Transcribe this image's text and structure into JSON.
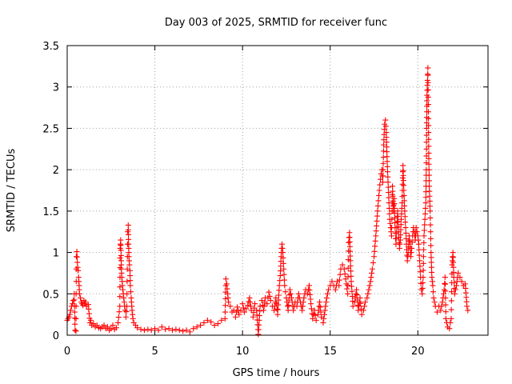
{
  "chart_data": {
    "type": "scatter",
    "title": "Day 003 of 2025, SRMTID for receiver func",
    "xlabel": "GPS time / hours",
    "ylabel": "SRMTID / TECUs",
    "xlim": [
      0,
      24
    ],
    "ylim": [
      0,
      3.5
    ],
    "xticks": [
      0,
      5,
      10,
      15,
      20
    ],
    "xtick_labels": [
      "0",
      "5",
      "10",
      "15",
      "20"
    ],
    "yticks": [
      0,
      0.5,
      1,
      1.5,
      2,
      2.5,
      3,
      3.5
    ],
    "ytick_labels": [
      "0",
      "0.5",
      "1",
      "1.5",
      "2",
      "2.5",
      "3",
      "3.5"
    ],
    "grid": true,
    "marker": "plus",
    "color": "#ff0000",
    "series": [
      {
        "name": "SRMTID",
        "points": [
          [
            0.0,
            0.18
          ],
          [
            0.05,
            0.2
          ],
          [
            0.1,
            0.22
          ],
          [
            0.15,
            0.25
          ],
          [
            0.2,
            0.3
          ],
          [
            0.25,
            0.35
          ],
          [
            0.3,
            0.38
          ],
          [
            0.35,
            0.42
          ],
          [
            0.4,
            0.5
          ],
          [
            0.45,
            0.06
          ],
          [
            0.5,
            0.05
          ],
          [
            0.52,
            0.95
          ],
          [
            0.55,
            1.01
          ],
          [
            0.58,
            0.88
          ],
          [
            0.6,
            0.82
          ],
          [
            0.62,
            0.78
          ],
          [
            0.65,
            0.7
          ],
          [
            0.68,
            0.6
          ],
          [
            0.7,
            0.5
          ],
          [
            0.75,
            0.45
          ],
          [
            0.8,
            0.4
          ],
          [
            0.85,
            0.38
          ],
          [
            0.9,
            0.36
          ],
          [
            0.95,
            0.42
          ],
          [
            1.0,
            0.38
          ],
          [
            1.05,
            0.4
          ],
          [
            1.1,
            0.35
          ],
          [
            1.2,
            0.37
          ],
          [
            1.3,
            0.15
          ],
          [
            1.35,
            0.18
          ],
          [
            1.4,
            0.12
          ],
          [
            1.5,
            0.14
          ],
          [
            1.6,
            0.1
          ],
          [
            1.7,
            0.12
          ],
          [
            1.8,
            0.09
          ],
          [
            1.9,
            0.08
          ],
          [
            2.0,
            0.1
          ],
          [
            2.1,
            0.12
          ],
          [
            2.2,
            0.08
          ],
          [
            2.3,
            0.1
          ],
          [
            2.4,
            0.06
          ],
          [
            2.5,
            0.08
          ],
          [
            2.6,
            0.12
          ],
          [
            2.7,
            0.07
          ],
          [
            2.8,
            0.09
          ],
          [
            2.9,
            0.15
          ],
          [
            3.0,
            0.35
          ],
          [
            3.02,
            1.05
          ],
          [
            3.05,
            1.15
          ],
          [
            3.08,
            0.9
          ],
          [
            3.1,
            0.75
          ],
          [
            3.15,
            0.6
          ],
          [
            3.2,
            0.5
          ],
          [
            3.25,
            0.4
          ],
          [
            3.3,
            0.3
          ],
          [
            3.35,
            0.22
          ],
          [
            3.4,
            0.35
          ],
          [
            3.45,
            1.25
          ],
          [
            3.48,
            1.33
          ],
          [
            3.5,
            1.1
          ],
          [
            3.52,
            0.95
          ],
          [
            3.55,
            0.85
          ],
          [
            3.58,
            0.78
          ],
          [
            3.6,
            0.6
          ],
          [
            3.65,
            0.45
          ],
          [
            3.7,
            0.3
          ],
          [
            3.75,
            0.2
          ],
          [
            3.8,
            0.15
          ],
          [
            3.9,
            0.12
          ],
          [
            4.0,
            0.09
          ],
          [
            4.2,
            0.07
          ],
          [
            4.4,
            0.06
          ],
          [
            4.6,
            0.07
          ],
          [
            4.8,
            0.06
          ],
          [
            5.0,
            0.08
          ],
          [
            5.2,
            0.06
          ],
          [
            5.4,
            0.1
          ],
          [
            5.6,
            0.07
          ],
          [
            5.8,
            0.08
          ],
          [
            6.0,
            0.06
          ],
          [
            6.2,
            0.07
          ],
          [
            6.4,
            0.06
          ],
          [
            6.6,
            0.05
          ],
          [
            6.8,
            0.06
          ],
          [
            7.0,
            0.04
          ],
          [
            7.2,
            0.08
          ],
          [
            7.4,
            0.1
          ],
          [
            7.6,
            0.12
          ],
          [
            7.8,
            0.15
          ],
          [
            8.0,
            0.18
          ],
          [
            8.2,
            0.16
          ],
          [
            8.4,
            0.12
          ],
          [
            8.6,
            0.14
          ],
          [
            8.8,
            0.18
          ],
          [
            9.0,
            0.2
          ],
          [
            9.05,
            0.68
          ],
          [
            9.1,
            0.62
          ],
          [
            9.15,
            0.5
          ],
          [
            9.2,
            0.4
          ],
          [
            9.3,
            0.35
          ],
          [
            9.4,
            0.28
          ],
          [
            9.5,
            0.3
          ],
          [
            9.6,
            0.22
          ],
          [
            9.7,
            0.34
          ],
          [
            9.8,
            0.25
          ],
          [
            9.9,
            0.3
          ],
          [
            10.0,
            0.38
          ],
          [
            10.1,
            0.28
          ],
          [
            10.2,
            0.32
          ],
          [
            10.3,
            0.36
          ],
          [
            10.4,
            0.45
          ],
          [
            10.5,
            0.3
          ],
          [
            10.6,
            0.22
          ],
          [
            10.7,
            0.38
          ],
          [
            10.8,
            0.3
          ],
          [
            10.9,
            0.01
          ],
          [
            11.0,
            0.35
          ],
          [
            11.1,
            0.42
          ],
          [
            11.2,
            0.3
          ],
          [
            11.3,
            0.45
          ],
          [
            11.4,
            0.38
          ],
          [
            11.5,
            0.52
          ],
          [
            11.6,
            0.42
          ],
          [
            11.7,
            0.35
          ],
          [
            11.8,
            0.3
          ],
          [
            11.9,
            0.45
          ],
          [
            12.0,
            0.25
          ],
          [
            12.1,
            0.6
          ],
          [
            12.15,
            0.72
          ],
          [
            12.2,
            0.95
          ],
          [
            12.25,
            1.1
          ],
          [
            12.3,
            1.0
          ],
          [
            12.35,
            0.8
          ],
          [
            12.4,
            0.6
          ],
          [
            12.5,
            0.45
          ],
          [
            12.6,
            0.3
          ],
          [
            12.7,
            0.55
          ],
          [
            12.8,
            0.45
          ],
          [
            12.9,
            0.3
          ],
          [
            13.0,
            0.4
          ],
          [
            13.1,
            0.35
          ],
          [
            13.2,
            0.5
          ],
          [
            13.3,
            0.4
          ],
          [
            13.4,
            0.3
          ],
          [
            13.5,
            0.45
          ],
          [
            13.6,
            0.55
          ],
          [
            13.7,
            0.5
          ],
          [
            13.8,
            0.6
          ],
          [
            13.9,
            0.38
          ],
          [
            14.0,
            0.2
          ],
          [
            14.1,
            0.3
          ],
          [
            14.2,
            0.18
          ],
          [
            14.3,
            0.25
          ],
          [
            14.4,
            0.4
          ],
          [
            14.5,
            0.22
          ],
          [
            14.6,
            0.15
          ],
          [
            14.7,
            0.3
          ],
          [
            14.8,
            0.45
          ],
          [
            14.9,
            0.55
          ],
          [
            15.0,
            0.6
          ],
          [
            15.1,
            0.65
          ],
          [
            15.2,
            0.6
          ],
          [
            15.3,
            0.55
          ],
          [
            15.4,
            0.65
          ],
          [
            15.5,
            0.6
          ],
          [
            15.6,
            0.8
          ],
          [
            15.7,
            0.85
          ],
          [
            15.8,
            0.8
          ],
          [
            16.0,
            0.5
          ],
          [
            16.05,
            1.12
          ],
          [
            16.1,
            1.24
          ],
          [
            16.15,
            0.9
          ],
          [
            16.2,
            0.65
          ],
          [
            16.3,
            0.35
          ],
          [
            16.4,
            0.4
          ],
          [
            16.5,
            0.55
          ],
          [
            16.6,
            0.3
          ],
          [
            16.7,
            0.45
          ],
          [
            16.8,
            0.25
          ],
          [
            16.9,
            0.3
          ],
          [
            17.0,
            0.4
          ],
          [
            17.1,
            0.45
          ],
          [
            17.2,
            0.55
          ],
          [
            17.3,
            0.65
          ],
          [
            17.4,
            0.8
          ],
          [
            17.5,
            0.95
          ],
          [
            17.6,
            1.2
          ],
          [
            17.7,
            1.5
          ],
          [
            17.8,
            1.75
          ],
          [
            17.9,
            1.95
          ],
          [
            17.95,
            2.0
          ],
          [
            18.0,
            1.85
          ],
          [
            18.05,
            2.3
          ],
          [
            18.1,
            2.55
          ],
          [
            18.15,
            2.6
          ],
          [
            18.2,
            2.45
          ],
          [
            18.25,
            2.1
          ],
          [
            18.3,
            1.85
          ],
          [
            18.35,
            1.6
          ],
          [
            18.4,
            1.4
          ],
          [
            18.45,
            1.3
          ],
          [
            18.5,
            1.2
          ],
          [
            18.55,
            1.8
          ],
          [
            18.6,
            1.5
          ],
          [
            18.65,
            1.65
          ],
          [
            18.7,
            1.3
          ],
          [
            18.75,
            1.1
          ],
          [
            18.8,
            1.3
          ],
          [
            18.85,
            1.5
          ],
          [
            18.9,
            1.25
          ],
          [
            18.95,
            1.05
          ],
          [
            19.0,
            1.15
          ],
          [
            19.05,
            1.4
          ],
          [
            19.1,
            1.6
          ],
          [
            19.15,
            2.05
          ],
          [
            19.2,
            1.75
          ],
          [
            19.25,
            1.5
          ],
          [
            19.3,
            1.3
          ],
          [
            19.35,
            1.1
          ],
          [
            19.4,
            0.9
          ],
          [
            19.45,
            1.0
          ],
          [
            19.5,
            1.2
          ],
          [
            19.55,
            1.1
          ],
          [
            19.6,
            0.95
          ],
          [
            19.65,
            1.05
          ],
          [
            19.7,
            1.2
          ],
          [
            19.75,
            1.3
          ],
          [
            19.8,
            1.25
          ],
          [
            19.85,
            1.15
          ],
          [
            19.9,
            1.3
          ],
          [
            19.95,
            1.25
          ],
          [
            20.0,
            1.2
          ],
          [
            20.05,
            1.1
          ],
          [
            20.1,
            0.9
          ],
          [
            20.15,
            0.7
          ],
          [
            20.2,
            0.55
          ],
          [
            20.25,
            0.5
          ],
          [
            20.3,
            0.7
          ],
          [
            20.35,
            1.2
          ],
          [
            20.45,
            1.6
          ],
          [
            20.48,
            2.0
          ],
          [
            20.5,
            2.5
          ],
          [
            20.52,
            2.9
          ],
          [
            20.55,
            3.08
          ],
          [
            20.57,
            3.23
          ],
          [
            20.6,
            2.7
          ],
          [
            20.62,
            2.2
          ],
          [
            20.65,
            1.8
          ],
          [
            20.7,
            1.5
          ],
          [
            20.75,
            1.0
          ],
          [
            20.8,
            0.7
          ],
          [
            20.85,
            0.6
          ],
          [
            20.9,
            0.45
          ],
          [
            21.0,
            0.35
          ],
          [
            21.1,
            0.28
          ],
          [
            21.2,
            0.35
          ],
          [
            21.3,
            0.3
          ],
          [
            21.4,
            0.4
          ],
          [
            21.5,
            0.55
          ],
          [
            21.55,
            0.7
          ],
          [
            21.6,
            0.2
          ],
          [
            21.7,
            0.1
          ],
          [
            21.8,
            0.08
          ],
          [
            21.85,
            0.15
          ],
          [
            21.9,
            0.2
          ],
          [
            21.95,
            0.85
          ],
          [
            22.0,
            1.0
          ],
          [
            22.05,
            0.7
          ],
          [
            22.1,
            0.5
          ],
          [
            22.2,
            0.6
          ],
          [
            22.3,
            0.75
          ],
          [
            22.4,
            0.7
          ],
          [
            22.5,
            0.65
          ],
          [
            22.6,
            0.6
          ],
          [
            22.7,
            0.62
          ],
          [
            22.8,
            0.35
          ],
          [
            22.85,
            0.3
          ]
        ]
      }
    ]
  }
}
